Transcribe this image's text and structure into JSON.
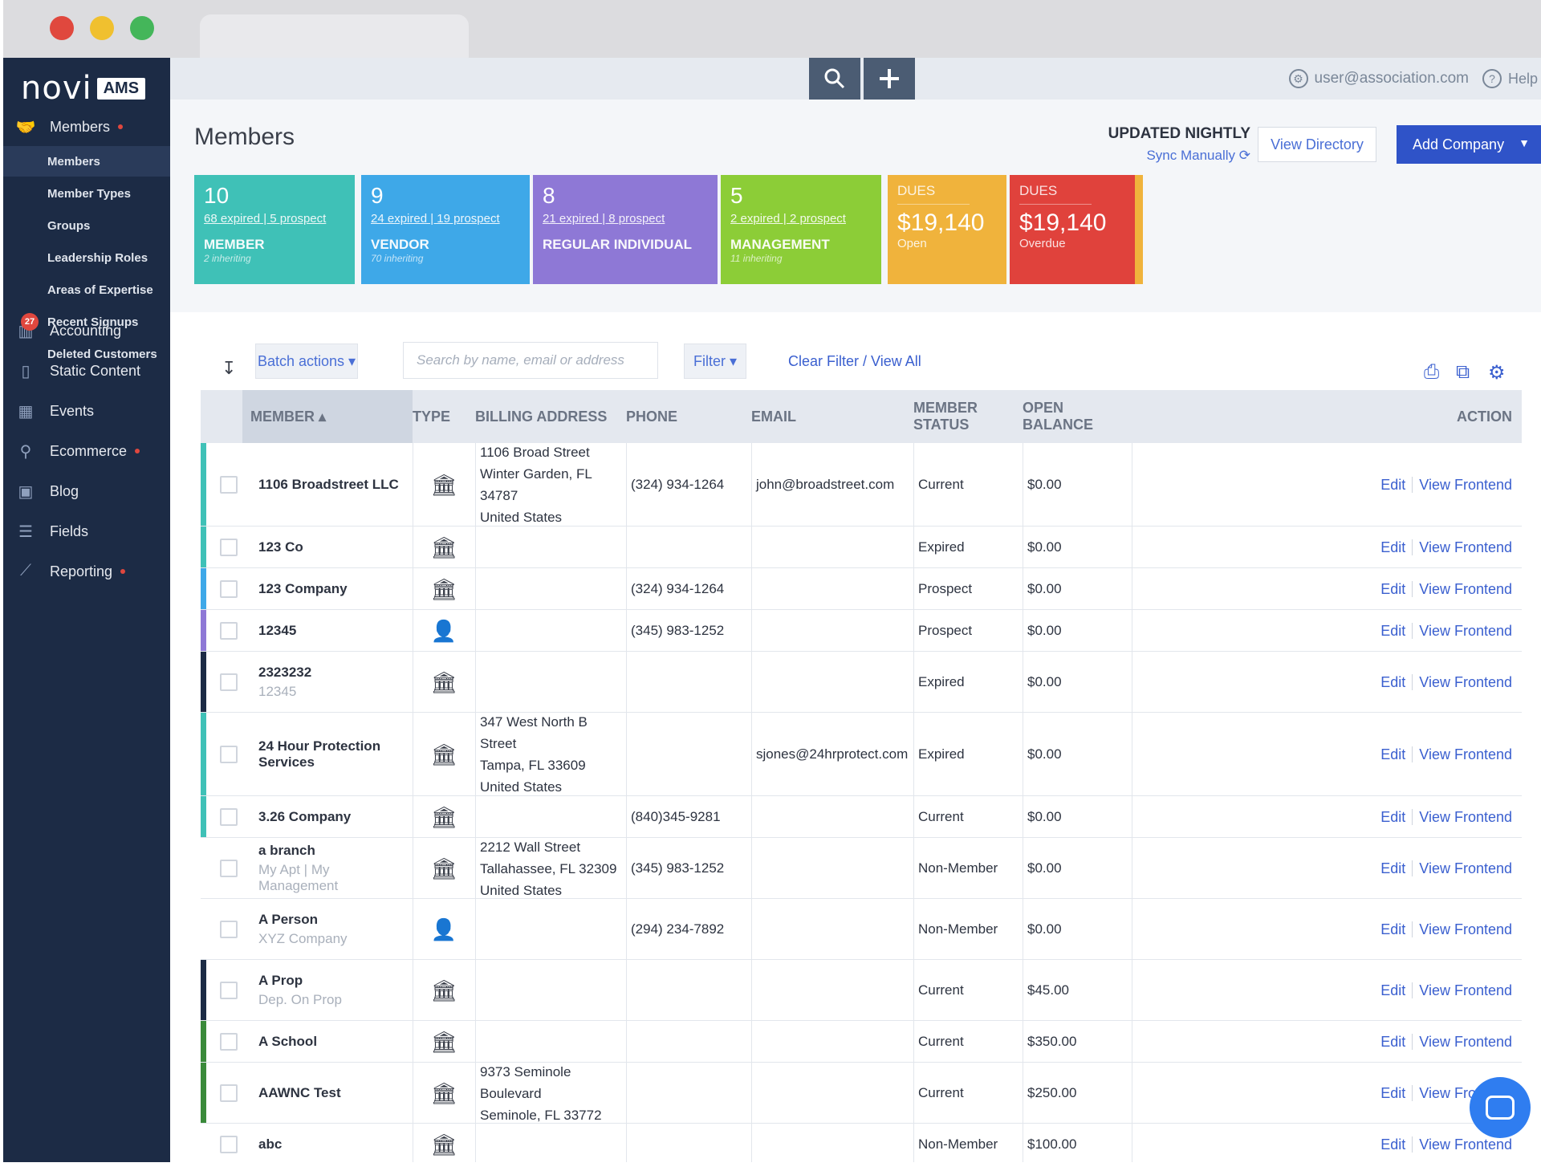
{
  "window": {
    "dots": [
      "#e0483e",
      "#f0c02f",
      "#44b65a"
    ]
  },
  "sidebar": {
    "logo": {
      "brand": "novi",
      "product": "AMS"
    },
    "main_items": [
      {
        "label": "Members",
        "icon": "handshake-icon",
        "dot": true
      },
      {
        "label": "Accounting",
        "icon": "accounting-icon",
        "dot": false
      },
      {
        "label": "Static Content",
        "icon": "document-icon",
        "dot": false
      },
      {
        "label": "Events",
        "icon": "calendar-icon",
        "dot": false
      },
      {
        "label": "Ecommerce",
        "icon": "ecommerce-icon",
        "dot": true
      },
      {
        "label": "Blog",
        "icon": "blog-icon",
        "dot": false
      },
      {
        "label": "Fields",
        "icon": "fields-list-icon",
        "dot": false
      },
      {
        "label": "Reporting",
        "icon": "reporting-chart-icon",
        "dot": true
      }
    ],
    "sub_items": [
      {
        "label": "Members",
        "active": true
      },
      {
        "label": "Member Types"
      },
      {
        "label": "Groups"
      },
      {
        "label": "Leadership Roles"
      },
      {
        "label": "Areas of Expertise"
      },
      {
        "label": "Recent Signups",
        "badge": "27"
      },
      {
        "label": "Deleted Customers"
      }
    ]
  },
  "topbar": {
    "search_icon": "search-icon",
    "add_icon": "plus-icon",
    "user_email": "user@association.com",
    "help_label": "Help"
  },
  "header": {
    "title": "Members",
    "updated": "UPDATED NIGHTLY",
    "sync": "Sync Manually",
    "view_directory": "View Directory",
    "add_company": "Add Company"
  },
  "cards": [
    {
      "number": "10",
      "sub": "68 expired | 5 prospect",
      "title": "MEMBER",
      "inheriting": "2 inheriting",
      "color": "#3fc1b7"
    },
    {
      "number": "9",
      "sub": "24 expired | 19 prospect",
      "title": "VENDOR",
      "inheriting": "70 inheriting",
      "color": "#3ea8e8"
    },
    {
      "number": "8",
      "sub": "21 expired | 8 prospect",
      "title": "REGULAR INDIVIDUAL",
      "inheriting": "",
      "color": "#8e78d6"
    },
    {
      "number": "5",
      "sub": "2 expired | 2 prospect",
      "title": "MANAGEMENT",
      "inheriting": "11 inheriting",
      "color": "#8ccd37"
    },
    {
      "label": "DUES",
      "amount": "$19,140",
      "status": "Open",
      "color": "#f0b33c"
    },
    {
      "label": "DUES",
      "amount": "$19,140",
      "status": "Overdue",
      "color": "#e0423c"
    }
  ],
  "toolbar": {
    "batch": "Batch actions ▾",
    "search_placeholder": "Search by name, email or address",
    "filter": "Filter ▾",
    "clear": "Clear Filter / View All"
  },
  "table": {
    "columns": [
      "MEMBER ▴",
      "TYPE",
      "BILLING ADDRESS",
      "PHONE",
      "EMAIL",
      "MEMBER STATUS",
      "OPEN BALANCE",
      "ACTION"
    ],
    "edit_label": "Edit",
    "view_label": "View Frontend",
    "rows": [
      {
        "name": "1106 Broadstreet LLC",
        "sub": "",
        "type": "company",
        "address": [
          "1106 Broad Street",
          "Winter Garden, FL 34787",
          "United States"
        ],
        "phone": "(324) 934-1264",
        "email": "john@broadstreet.com",
        "status": "Current",
        "balance": "$0.00",
        "bar": "#3fc1b7"
      },
      {
        "name": "123 Co",
        "sub": "",
        "type": "company",
        "address": [],
        "phone": "",
        "email": "",
        "status": "Expired",
        "balance": "$0.00",
        "bar": "#3fc1b7"
      },
      {
        "name": "123 Company",
        "sub": "",
        "type": "company",
        "address": [],
        "phone": "(324) 934-1264",
        "email": "",
        "status": "Prospect",
        "balance": "$0.00",
        "bar": "#3ea8e8"
      },
      {
        "name": "12345",
        "sub": "",
        "type": "person",
        "address": [],
        "phone": "(345) 983-1252",
        "email": "",
        "status": "Prospect",
        "balance": "$0.00",
        "bar": "#8e78d6"
      },
      {
        "name": "2323232",
        "sub": "12345",
        "type": "company",
        "address": [],
        "phone": "",
        "email": "",
        "status": "Expired",
        "balance": "$0.00",
        "bar": "#1c2b45"
      },
      {
        "name": "24 Hour Protection Services",
        "sub": "",
        "type": "company",
        "address": [
          "347 West North B Street",
          "Tampa, FL 33609",
          "United States"
        ],
        "phone": "",
        "email": "sjones@24hrprotect.com",
        "status": "Expired",
        "balance": "$0.00",
        "bar": "#3fc1b7"
      },
      {
        "name": "3.26 Company",
        "sub": "",
        "type": "company",
        "address": [],
        "phone": "(840)345-9281",
        "email": "",
        "status": "Current",
        "balance": "$0.00",
        "bar": "#3fc1b7"
      },
      {
        "name": "a branch",
        "sub": "My Apt | My Management",
        "type": "company",
        "address": [
          "2212 Wall Street",
          "Tallahassee, FL 32309",
          "United States"
        ],
        "phone": "(345) 983-1252",
        "email": "",
        "status": "Non-Member",
        "balance": "$0.00",
        "bar": ""
      },
      {
        "name": "A Person",
        "sub": "XYZ Company",
        "type": "person",
        "address": [],
        "phone": "(294) 234-7892",
        "email": "",
        "status": "Non-Member",
        "balance": "$0.00",
        "bar": ""
      },
      {
        "name": "A Prop",
        "sub": "Dep. On Prop",
        "type": "company",
        "address": [],
        "phone": "",
        "email": "",
        "status": "Current",
        "balance": "$45.00",
        "bar": "#1c2b45"
      },
      {
        "name": "A School",
        "sub": "",
        "type": "company",
        "address": [],
        "phone": "",
        "email": "",
        "status": "Current",
        "balance": "$350.00",
        "bar": "#3a8a3a"
      },
      {
        "name": "AAWNC Test",
        "sub": "",
        "type": "company",
        "address": [
          "9373 Seminole Boulevard",
          "Seminole, FL 33772"
        ],
        "phone": "",
        "email": "",
        "status": "Current",
        "balance": "$250.00",
        "bar": "#3a8a3a"
      },
      {
        "name": "abc",
        "sub": "",
        "type": "company",
        "address": [],
        "phone": "",
        "email": "",
        "status": "Non-Member",
        "balance": "$100.00",
        "bar": ""
      }
    ]
  }
}
